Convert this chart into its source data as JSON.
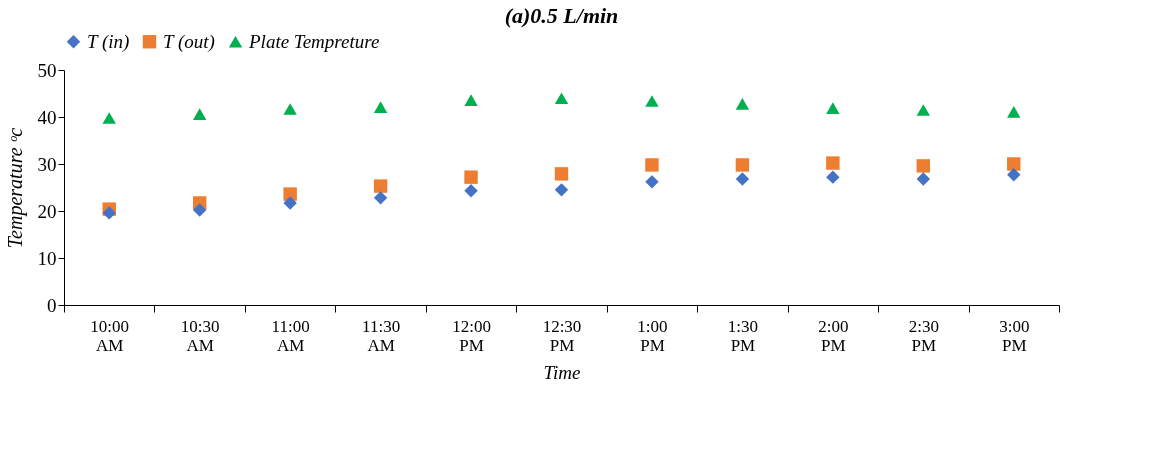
{
  "chart_data": {
    "type": "scatter",
    "title": "(a)0.5 L/min",
    "xlabel": "Time",
    "ylabel": "Temperature ᵒc",
    "categories": [
      "10:00 AM",
      "10:30 AM",
      "11:00 AM",
      "11:30 AM",
      "12:00 PM",
      "12:30 PM",
      "1:00 PM",
      "1:30 PM",
      "2:00 PM",
      "2:30 PM",
      "3:00 PM"
    ],
    "series": [
      {
        "name": "T (in)",
        "color": "#4472c4",
        "marker": "diamond",
        "values": [
          19.6,
          20.2,
          21.7,
          22.8,
          24.3,
          24.5,
          26.2,
          26.8,
          27.2,
          26.8,
          27.7
        ]
      },
      {
        "name": "T (out)",
        "color": "#ed7d31",
        "marker": "square",
        "values": [
          20.4,
          21.7,
          23.6,
          25.3,
          27.2,
          27.9,
          29.8,
          29.8,
          30.2,
          29.6,
          30.0
        ]
      },
      {
        "name": "Plate Tempreture",
        "color": "#00b050",
        "marker": "triangle",
        "values": [
          39.8,
          40.6,
          41.7,
          42.1,
          43.6,
          44.0,
          43.4,
          42.8,
          41.9,
          41.5,
          41.1
        ]
      }
    ],
    "ylim": [
      0,
      50
    ],
    "yticks": [
      0,
      10,
      20,
      30,
      40,
      50
    ],
    "grid": false,
    "legend": "top"
  }
}
